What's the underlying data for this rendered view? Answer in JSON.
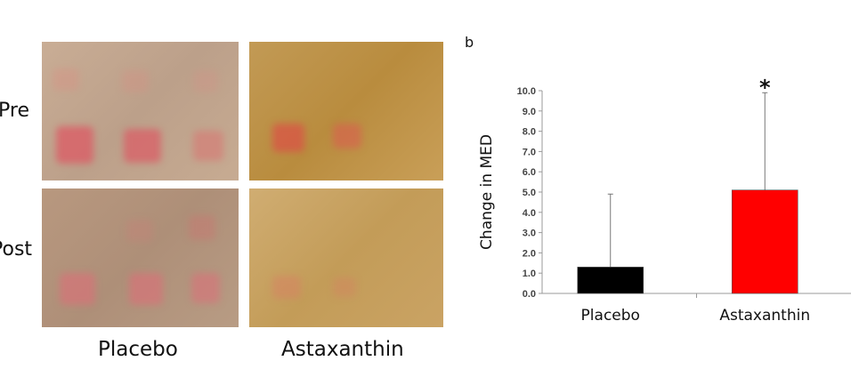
{
  "panel_a": {
    "row_labels": [
      "Pre",
      "Post"
    ],
    "column_labels": [
      "Placebo",
      "Astaxanthin"
    ]
  },
  "panel_b": {
    "label": "b"
  },
  "chart_data": {
    "type": "bar",
    "categories": [
      "Placebo",
      "Astaxanthin"
    ],
    "values": [
      1.3,
      5.1
    ],
    "error_upper": [
      3.6,
      4.8
    ],
    "bar_colors": [
      "#000000",
      "#ff0000"
    ],
    "ylabel": "Change in MED",
    "xlabel": "",
    "ylim": [
      0,
      10
    ],
    "yticks": [
      "0.0",
      "1.0",
      "2.0",
      "3.0",
      "4.0",
      "5.0",
      "6.0",
      "7.0",
      "8.0",
      "9.0",
      "10.0"
    ],
    "annotations": [
      {
        "category": "Astaxanthin",
        "text": "*"
      }
    ],
    "grid": false
  }
}
